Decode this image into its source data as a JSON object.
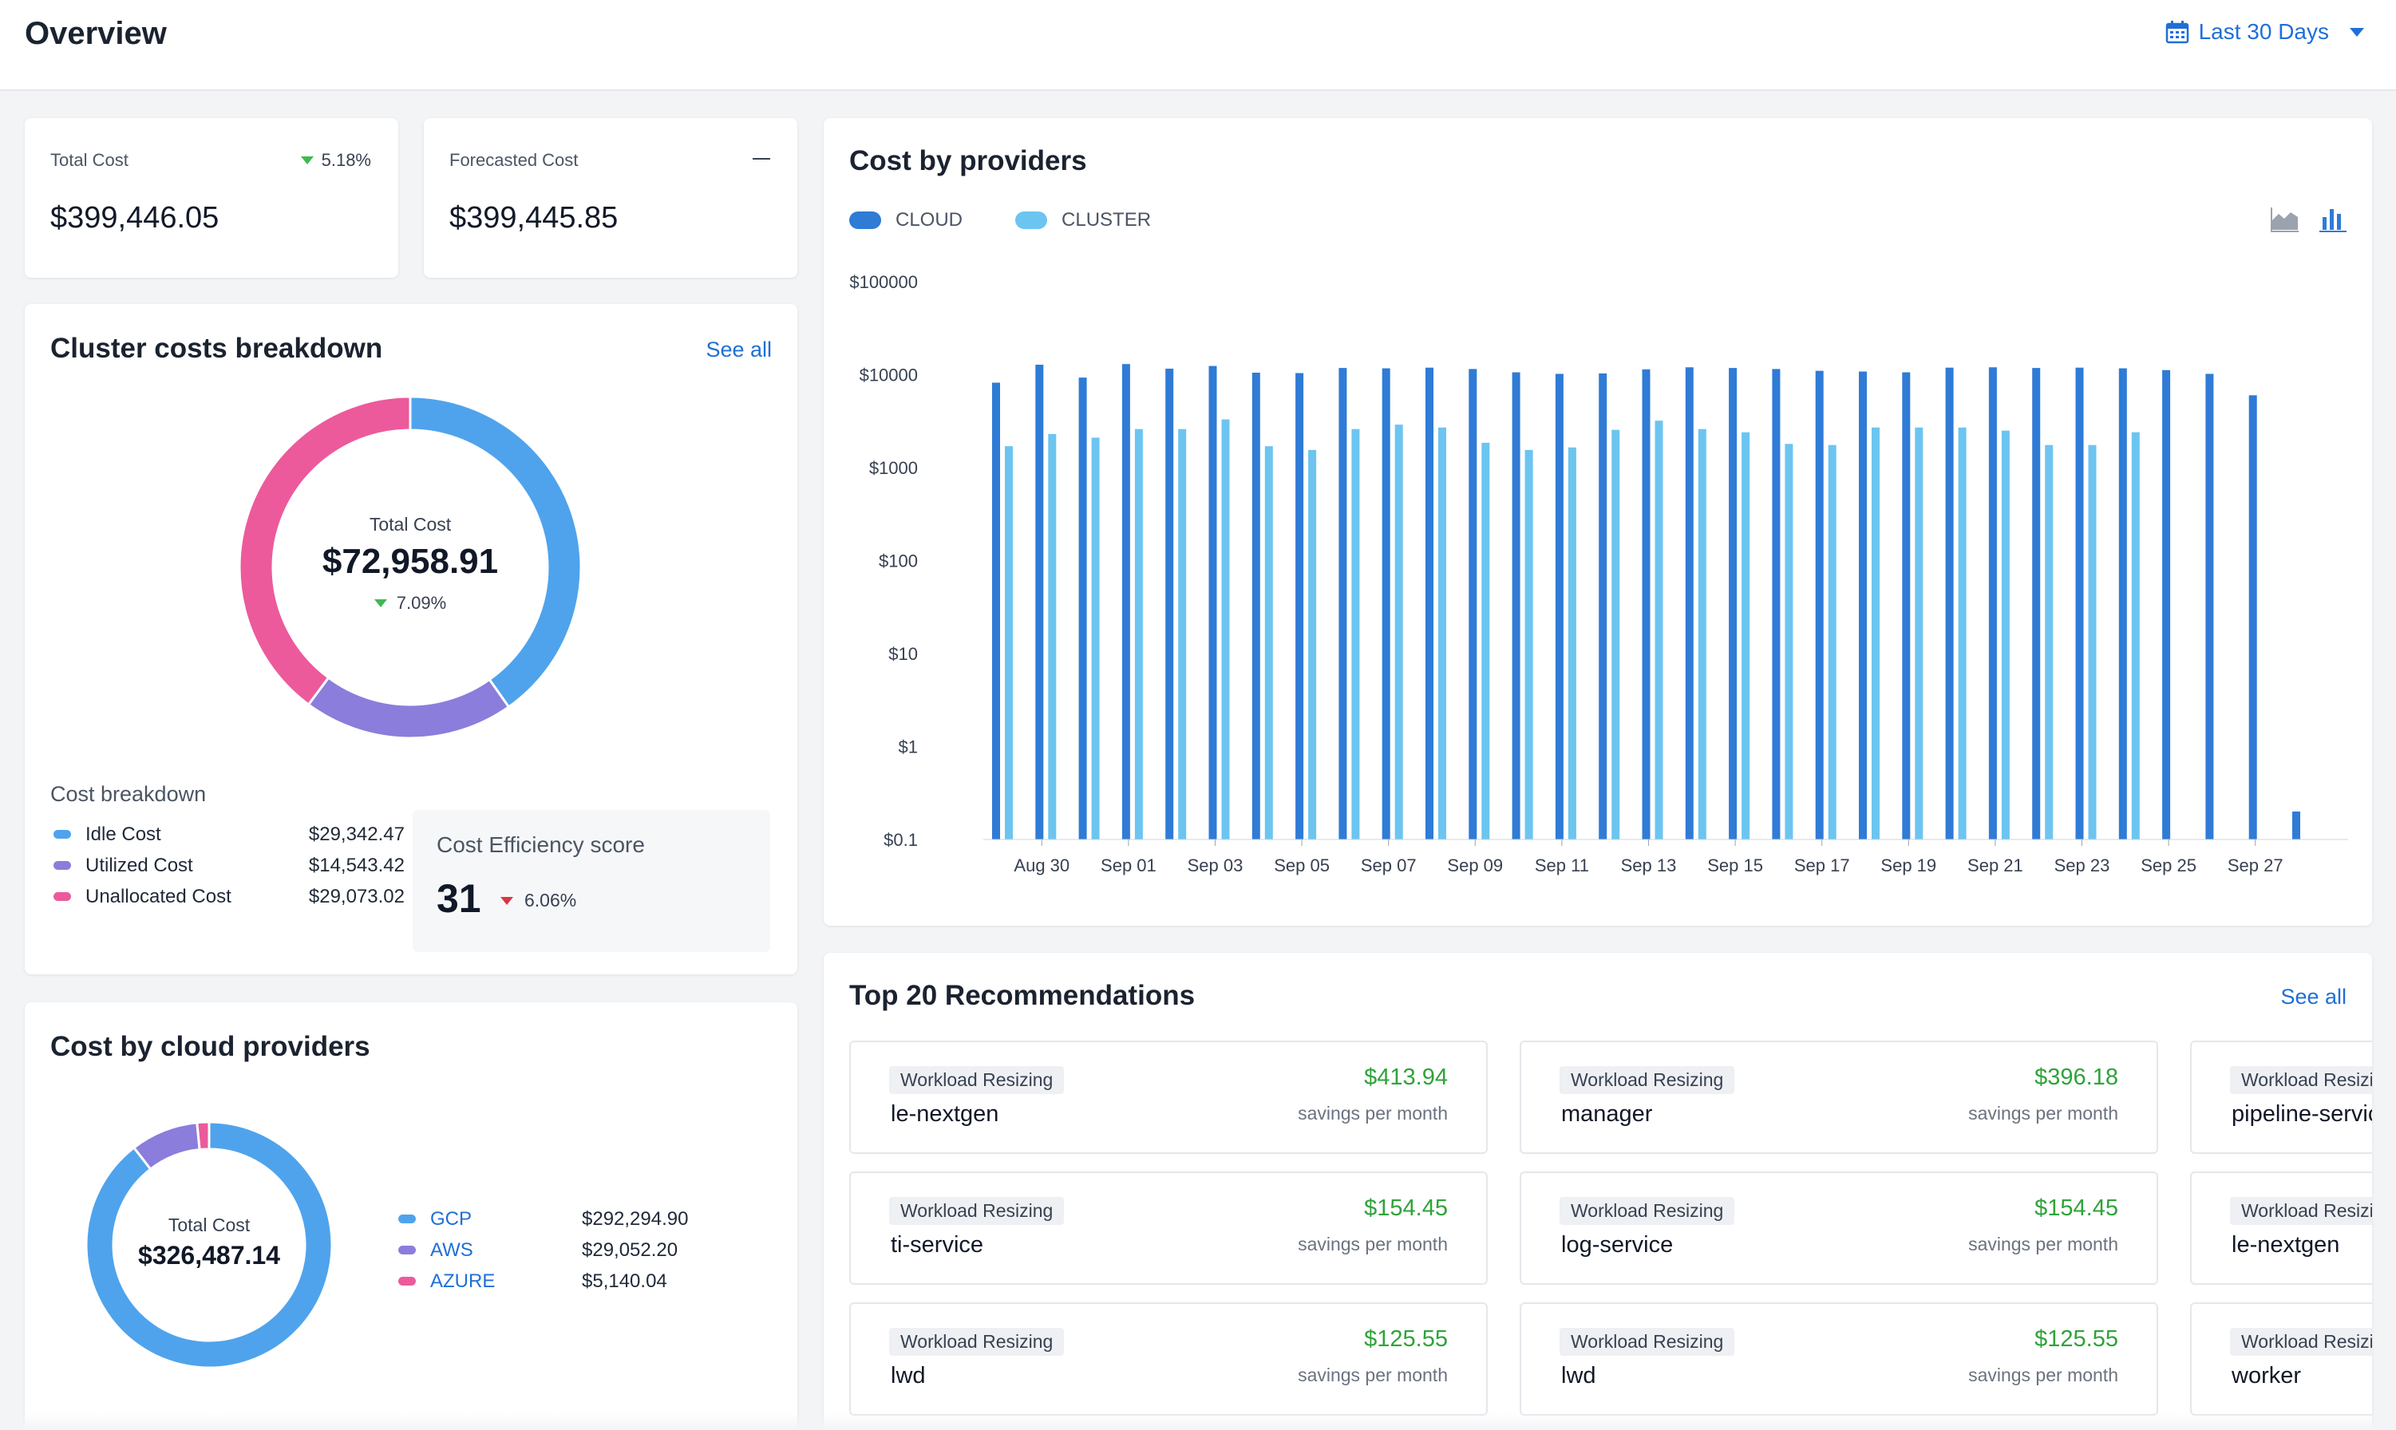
{
  "header": {
    "title": "Overview",
    "date_range": "Last 30 Days"
  },
  "kpis": {
    "total_cost": {
      "label": "Total Cost",
      "value": "$399,446.05",
      "change": "5.18%"
    },
    "forecasted_cost": {
      "label": "Forecasted Cost",
      "value": "$399,445.85"
    }
  },
  "cluster_breakdown": {
    "title": "Cluster costs breakdown",
    "see_all": "See all",
    "center_label": "Total Cost",
    "center_value": "$72,958.91",
    "center_change": "7.09%",
    "legend_title": "Cost breakdown",
    "items": [
      {
        "name": "Idle Cost",
        "value": "$29,342.47",
        "color": "#4fa3ec",
        "amount": 29342.47
      },
      {
        "name": "Utilized Cost",
        "value": "$14,543.42",
        "color": "#8b7ddb",
        "amount": 14543.42
      },
      {
        "name": "Unallocated Cost",
        "value": "$29,073.02",
        "color": "#ec5a9c",
        "amount": 29073.02
      }
    ],
    "efficiency_label": "Cost Efficiency score",
    "efficiency_score": "31",
    "efficiency_change": "6.06%"
  },
  "cloud_providers": {
    "title": "Cost by cloud providers",
    "center_label": "Total Cost",
    "center_value": "$326,487.14",
    "items": [
      {
        "name": "GCP",
        "value": "$292,294.90",
        "color": "#4fa3ec",
        "amount": 292294.9
      },
      {
        "name": "AWS",
        "value": "$29,052.20",
        "color": "#8b7ddb",
        "amount": 29052.2
      },
      {
        "name": "AZURE",
        "value": "$5,140.04",
        "color": "#ec5a9c",
        "amount": 5140.04
      }
    ]
  },
  "chart_data": {
    "type": "bar",
    "title": "Cost by providers",
    "yscale": "log",
    "ylim": [
      0.1,
      100000
    ],
    "y_ticks": [
      "$100000",
      "$10000",
      "$1000",
      "$100",
      "$10",
      "$1",
      "$0.1"
    ],
    "x_tick_labels": [
      "Aug 30",
      "Sep 01",
      "Sep 03",
      "Sep 05",
      "Sep 07",
      "Sep 09",
      "Sep 11",
      "Sep 13",
      "Sep 15",
      "Sep 17",
      "Sep 19",
      "Sep 21",
      "Sep 23",
      "Sep 25",
      "Sep 27"
    ],
    "legend_position": "top-left",
    "series": [
      {
        "name": "CLOUD",
        "color": "#2f7bd6",
        "values": [
          8200,
          12800,
          9300,
          13000,
          11600,
          12400,
          10500,
          10400,
          11800,
          11700,
          11900,
          11500,
          10600,
          10200,
          10300,
          11400,
          12000,
          11800,
          11500,
          11000,
          10800,
          10600,
          11900,
          12000,
          11800,
          11900,
          11700,
          11200,
          10200,
          6000,
          0.2
        ]
      },
      {
        "name": "CLUSTER",
        "color": "#6cc5f0",
        "values": [
          1700,
          2300,
          2100,
          2600,
          2600,
          3300,
          1700,
          1550,
          2600,
          2900,
          2700,
          1850,
          1550,
          1650,
          2550,
          3200,
          2600,
          2400,
          1800,
          1750,
          2700,
          2700,
          2700,
          2500,
          1750,
          1750,
          2400,
          null
        ]
      }
    ]
  },
  "recommendations": {
    "title": "Top 20 Recommendations",
    "see_all": "See all",
    "savings_label": "savings per month",
    "cards": [
      {
        "tag": "Workload Resizing",
        "name": "le-nextgen",
        "amount": "$413.94"
      },
      {
        "tag": "Workload Resizing",
        "name": "manager",
        "amount": "$396.18"
      },
      {
        "tag": "Workload Resizing",
        "name": "pipeline-service",
        "amount": ""
      },
      {
        "tag": "Workload Resizing",
        "name": "ti-service",
        "amount": "$154.45"
      },
      {
        "tag": "Workload Resizing",
        "name": "log-service",
        "amount": "$154.45"
      },
      {
        "tag": "Workload Resizing",
        "name": "le-nextgen",
        "amount": ""
      },
      {
        "tag": "Workload Resizing",
        "name": "lwd",
        "amount": "$125.55"
      },
      {
        "tag": "Workload Resizing",
        "name": "lwd",
        "amount": "$125.55"
      },
      {
        "tag": "Workload Resizing",
        "name": "worker",
        "amount": ""
      }
    ]
  }
}
